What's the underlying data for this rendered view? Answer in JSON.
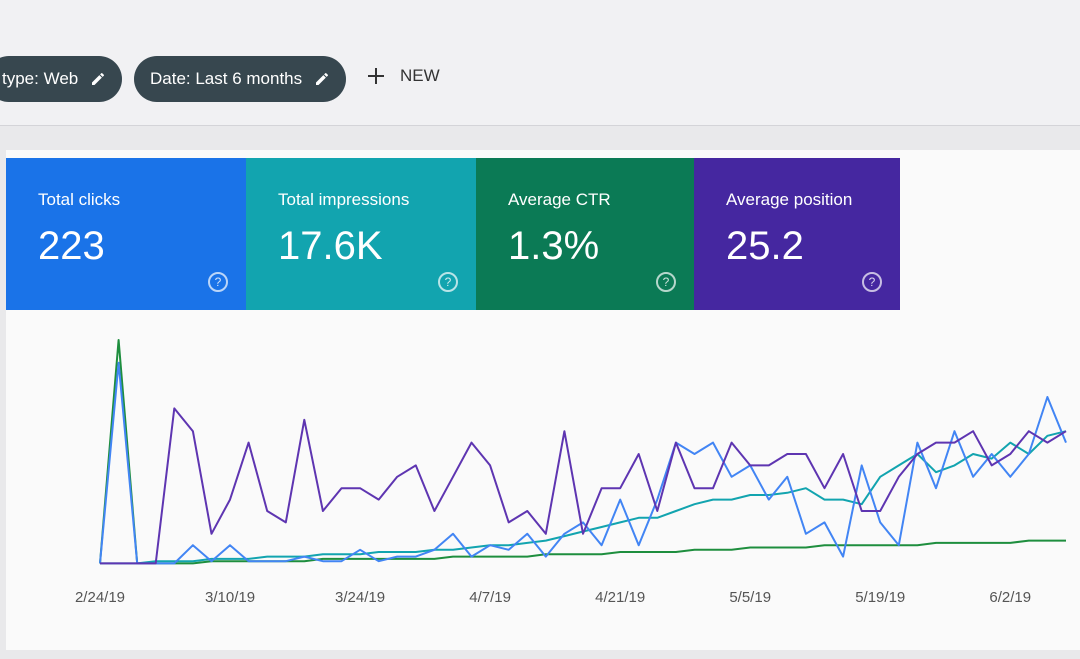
{
  "filters": [
    "type: Web",
    "Date: Last 6 months"
  ],
  "new_button": "NEW",
  "cards": [
    {
      "label": "Total clicks",
      "value": "223",
      "color": "#1a73e8"
    },
    {
      "label": "Total impressions",
      "value": "17.6K",
      "color": "#12a4af"
    },
    {
      "label": "Average CTR",
      "value": "1.3%",
      "color": "#0b7a55"
    },
    {
      "label": "Average position",
      "value": "25.2",
      "color": "#4527a0"
    }
  ],
  "chart_data": {
    "type": "line",
    "categories": [
      "2/24/19",
      null,
      null,
      null,
      null,
      null,
      null,
      "3/10/19",
      null,
      null,
      null,
      null,
      null,
      null,
      "3/24/19",
      null,
      null,
      null,
      null,
      null,
      null,
      "4/7/19",
      null,
      null,
      null,
      null,
      null,
      null,
      "4/21/19",
      null,
      null,
      null,
      null,
      null,
      null,
      "5/5/19",
      null,
      null,
      null,
      null,
      null,
      null,
      "5/19/19",
      null,
      null,
      null,
      null,
      null,
      null,
      "6/2/19",
      null,
      null,
      null
    ],
    "ylim": [
      0,
      100
    ],
    "series": [
      {
        "color": "#1e8e3e",
        "values": [
          2,
          100,
          2,
          2,
          2,
          2,
          3,
          3,
          3,
          3,
          3,
          3,
          4,
          4,
          4,
          4,
          4,
          4,
          4,
          5,
          5,
          5,
          5,
          5,
          6,
          6,
          6,
          6,
          7,
          7,
          7,
          7,
          8,
          8,
          8,
          9,
          9,
          9,
          9,
          10,
          10,
          10,
          10,
          10,
          10,
          11,
          11,
          11,
          11,
          11,
          12,
          12,
          12
        ]
      },
      {
        "color": "#12a4af",
        "values": [
          2,
          2,
          2,
          3,
          3,
          3,
          4,
          4,
          4,
          5,
          5,
          5,
          6,
          6,
          6,
          7,
          7,
          7,
          8,
          8,
          9,
          10,
          10,
          11,
          12,
          14,
          16,
          18,
          20,
          22,
          22,
          25,
          28,
          30,
          30,
          32,
          32,
          33,
          35,
          30,
          30,
          28,
          40,
          45,
          50,
          42,
          45,
          50,
          48,
          55,
          50,
          58,
          60
        ]
      },
      {
        "color": "#4285f4",
        "values": [
          2,
          90,
          2,
          2,
          2,
          10,
          3,
          10,
          3,
          3,
          3,
          5,
          3,
          3,
          8,
          3,
          5,
          5,
          8,
          15,
          5,
          10,
          8,
          15,
          5,
          15,
          20,
          10,
          30,
          10,
          30,
          55,
          50,
          55,
          40,
          45,
          30,
          40,
          15,
          20,
          5,
          45,
          20,
          10,
          55,
          35,
          60,
          40,
          50,
          40,
          50,
          75,
          55
        ]
      },
      {
        "color": "#5e35b1",
        "values": [
          2,
          2,
          2,
          2,
          70,
          60,
          15,
          30,
          55,
          25,
          20,
          65,
          25,
          35,
          35,
          30,
          40,
          45,
          25,
          40,
          55,
          45,
          20,
          25,
          15,
          60,
          15,
          35,
          35,
          50,
          25,
          55,
          35,
          35,
          55,
          45,
          45,
          50,
          50,
          35,
          50,
          25,
          25,
          40,
          50,
          55,
          55,
          60,
          45,
          50,
          60,
          55,
          60
        ]
      }
    ]
  }
}
